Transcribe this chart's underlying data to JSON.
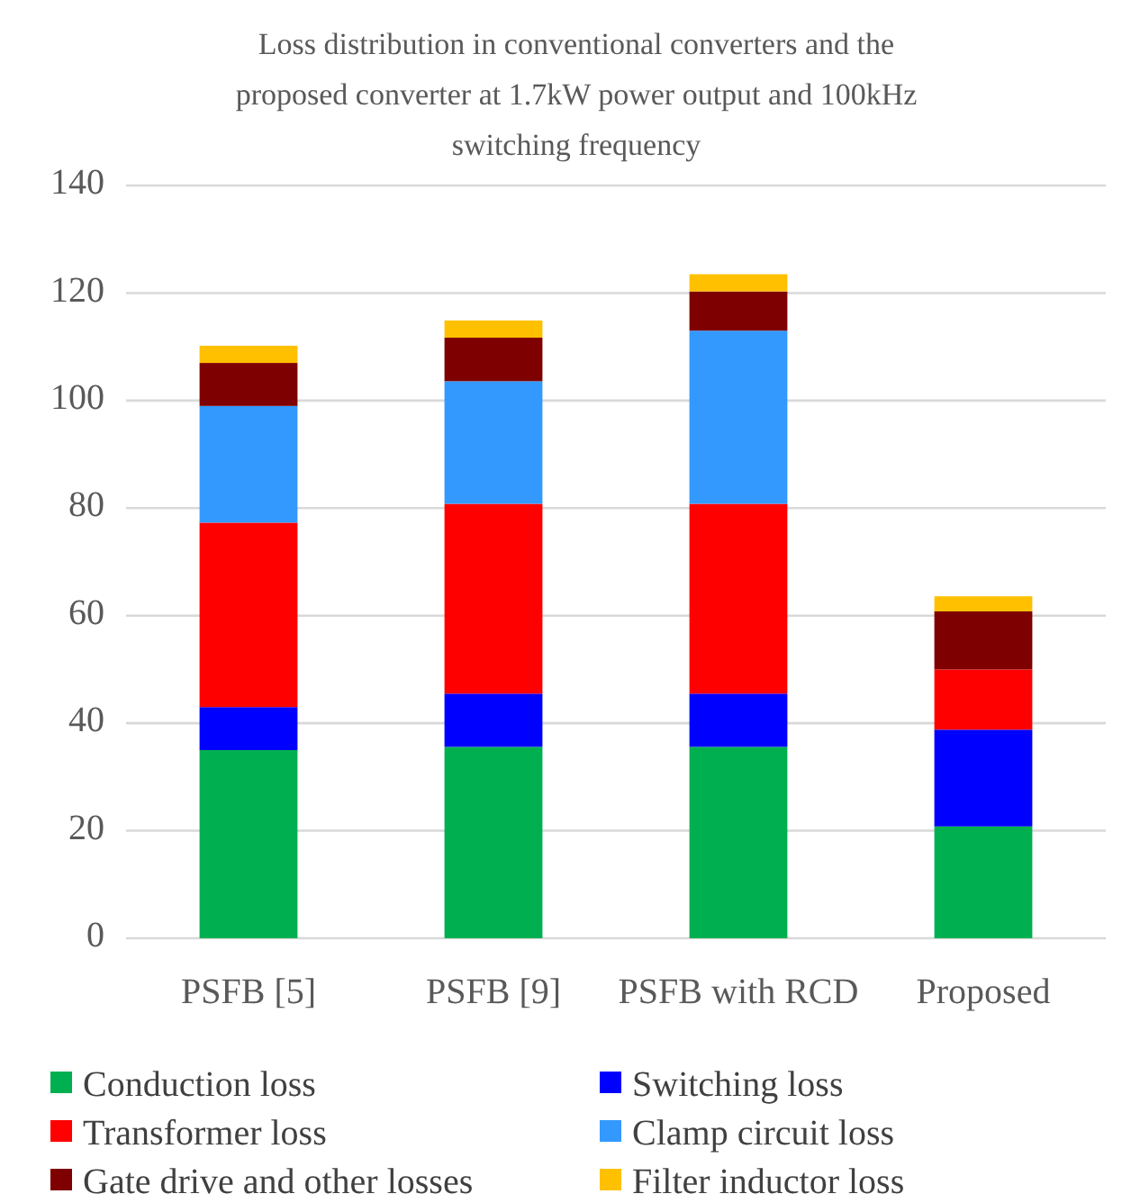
{
  "chart_data": {
    "type": "bar",
    "title": "Loss distribution in conventional converters and the proposed converter at 1.7kW power output and 100kHz switching frequency",
    "categories": [
      "PSFB [5]",
      "PSFB [9]",
      "PSFB with RCD",
      "Proposed"
    ],
    "stacked": true,
    "series": [
      {
        "name": "Conduction loss",
        "color": "#00b050",
        "values": [
          35,
          35.6,
          35.6,
          20.8
        ]
      },
      {
        "name": "Switching loss",
        "color": "#0000ff",
        "values": [
          8,
          9.9,
          9.9,
          18
        ]
      },
      {
        "name": "Transformer loss",
        "color": "#ff0000",
        "values": [
          34.3,
          35.3,
          35.3,
          11.2
        ]
      },
      {
        "name": "Clamp circuit loss",
        "color": "#3399ff",
        "values": [
          21.7,
          22.8,
          32.2,
          0
        ]
      },
      {
        "name": "Gate drive and other losses",
        "color": "#7f0000",
        "values": [
          8,
          8.1,
          7.3,
          10.8
        ]
      },
      {
        "name": "Filter inductor loss",
        "color": "#ffc000",
        "values": [
          3.2,
          3.2,
          3.2,
          2.8
        ]
      }
    ],
    "ylim": [
      0,
      140
    ],
    "yticks": [
      0,
      20,
      40,
      60,
      80,
      100,
      120,
      140
    ],
    "grid": "y",
    "legend": "bottom"
  }
}
